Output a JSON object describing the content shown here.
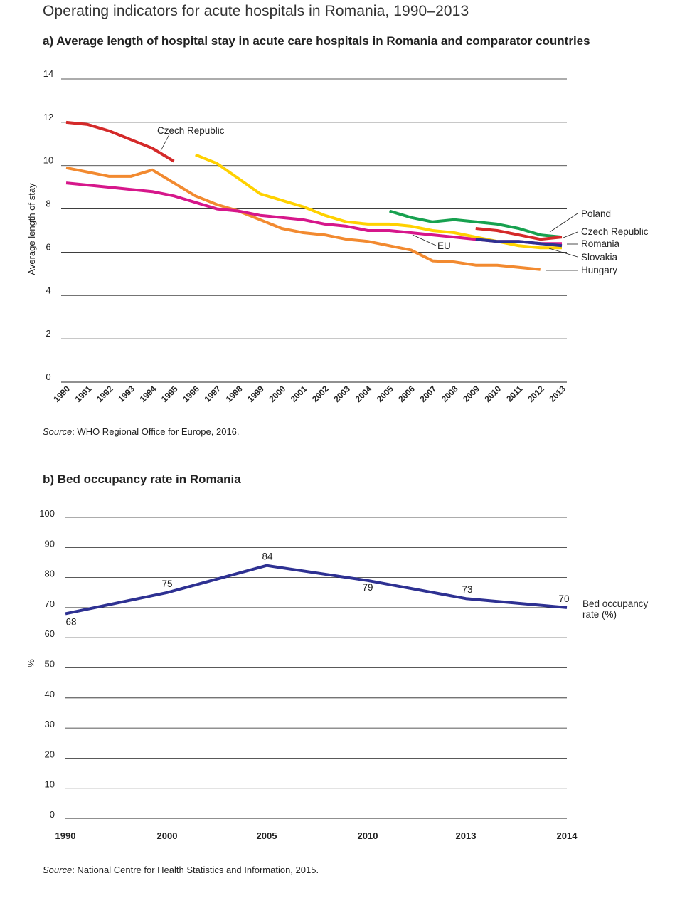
{
  "figure_title": "Operating indicators for acute hospitals in Romania, 1990–2013",
  "source_a": {
    "label": "Source",
    "text": ": WHO Regional Office for Europe, 2016."
  },
  "source_b": {
    "label": "Source",
    "text": ": National Centre for Health Statistics and Information, 2015."
  },
  "chart_data": [
    {
      "type": "line",
      "title": "a) Average length of hospital stay in acute care hospitals in Romania and comparator countries",
      "xlabel": "",
      "ylabel": "Average length of stay",
      "ylim": [
        0,
        14
      ],
      "yticks": [
        "0",
        "2",
        "4",
        "6",
        "8",
        "10",
        "12",
        "14"
      ],
      "categories": [
        "1990",
        "1991",
        "1992",
        "1993",
        "1994",
        "1995",
        "1996",
        "1997",
        "1998",
        "1999",
        "2000",
        "2001",
        "2002",
        "2003",
        "2004",
        "2005",
        "2006",
        "2007",
        "2008",
        "2009",
        "2010",
        "2011",
        "2012",
        "2013"
      ],
      "grid": true,
      "legend": "direct labels at right end",
      "series": [
        {
          "name": "Czech Republic",
          "color": "#d42a2a",
          "values": [
            12.0,
            11.9,
            11.6,
            11.2,
            10.8,
            10.2,
            null,
            null,
            null,
            null,
            null,
            null,
            null,
            null,
            null,
            null,
            null,
            null,
            null,
            7.1,
            7.0,
            6.8,
            6.6,
            6.7
          ]
        },
        {
          "name": "Poland",
          "color": "#17a14f",
          "values": [
            null,
            null,
            null,
            null,
            null,
            null,
            null,
            null,
            null,
            null,
            null,
            null,
            null,
            null,
            null,
            7.9,
            7.6,
            7.4,
            7.5,
            7.4,
            7.3,
            7.1,
            6.8,
            6.7
          ]
        },
        {
          "name": "Slovakia",
          "color": "#ffd100",
          "values": [
            null,
            null,
            null,
            null,
            null,
            null,
            10.5,
            10.1,
            9.4,
            8.7,
            8.4,
            8.1,
            7.7,
            7.4,
            7.3,
            7.3,
            7.2,
            7.0,
            6.9,
            6.7,
            6.5,
            6.3,
            6.2,
            6.2
          ]
        },
        {
          "name": "Hungary",
          "color": "#f28a30",
          "values": [
            9.9,
            9.7,
            9.5,
            9.5,
            9.8,
            9.2,
            8.6,
            8.2,
            7.9,
            7.5,
            7.1,
            6.9,
            6.8,
            6.6,
            6.5,
            6.3,
            6.1,
            5.6,
            5.55,
            5.4,
            5.4,
            5.3,
            5.2,
            null
          ]
        },
        {
          "name": "EU",
          "color": "#d6178b",
          "values": [
            9.2,
            9.1,
            9.0,
            8.9,
            8.8,
            8.6,
            8.3,
            8.0,
            7.9,
            7.7,
            7.6,
            7.5,
            7.3,
            7.2,
            7.0,
            7.0,
            6.9,
            6.8,
            6.7,
            6.6,
            6.5,
            6.5,
            6.4,
            6.4
          ]
        },
        {
          "name": "Romania",
          "color": "#2e3192",
          "values": [
            null,
            null,
            null,
            null,
            null,
            null,
            null,
            null,
            null,
            null,
            null,
            null,
            null,
            null,
            null,
            null,
            null,
            null,
            null,
            6.6,
            6.5,
            6.5,
            6.4,
            6.3
          ]
        }
      ],
      "labels": [
        "Czech Republic",
        "Poland",
        "Czech Republic",
        "Romania",
        "Slovakia",
        "Hungary",
        "EU"
      ]
    },
    {
      "type": "line",
      "title": "b) Bed occupancy rate in Romania",
      "xlabel": "",
      "ylabel": "%",
      "ylim": [
        0,
        100
      ],
      "yticks": [
        "0",
        "10",
        "20",
        "30",
        "40",
        "50",
        "60",
        "70",
        "80",
        "90",
        "100"
      ],
      "categories": [
        "1990",
        "2000",
        "2005",
        "2010",
        "2013",
        "2014"
      ],
      "grid": true,
      "legend": "direct label at right end",
      "series": [
        {
          "name": "Bed occupancy rate (%)",
          "name_lines": [
            "Bed occupancy",
            "rate (%)"
          ],
          "color": "#2e3192",
          "values": [
            68,
            75,
            84,
            79,
            73,
            70
          ],
          "value_labels": [
            "68",
            "75",
            "84",
            "79",
            "73",
            "70"
          ]
        }
      ]
    }
  ]
}
